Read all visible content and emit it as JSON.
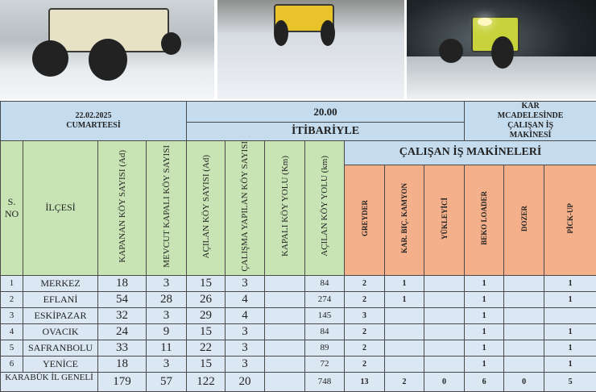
{
  "photos": [
    {
      "name": "grader-snow-photo"
    },
    {
      "name": "grader-road-photo"
    },
    {
      "name": "night-plow-photo"
    }
  ],
  "header": {
    "date": "22.02.2025",
    "day": "CUMARTEESİ",
    "time": "20.00",
    "itibariyle": "İTİBARİYLE",
    "machines_title": "KAR MCADELESİNDE ÇALIŞAN İŞ MAKİNESİ",
    "machines_subtitle": "ÇALIŞAN İŞ MAKİNELERİ"
  },
  "columns": [
    "S. NO",
    "İLÇESİ",
    "KAPANAN KÖY SAYISI (Ad)",
    "MEVCUT KAPALI KÖY SAYISI",
    "AÇILAN KÖY SAYISI (Ad)",
    "ÇALIŞMA YAPILAN KÖY SAYISI",
    "KAPALI KÖY YOLU (Km)",
    "AÇILAN KÖY YOLU (km)",
    "GREYDER",
    "KAR. BIÇ. KAMYON",
    "YÜKLEYİCİ",
    "BEKO LOADER",
    "DOZER",
    "PİCK-UP"
  ],
  "rows": [
    [
      "1",
      "MERKEZ",
      "18",
      "3",
      "15",
      "3",
      "",
      "84",
      "2",
      "1",
      "",
      "1",
      "",
      "1"
    ],
    [
      "2",
      "EFLANİ",
      "54",
      "28",
      "26",
      "4",
      "",
      "274",
      "2",
      "1",
      "",
      "1",
      "",
      "1"
    ],
    [
      "3",
      "ESKİPAZAR",
      "32",
      "3",
      "29",
      "4",
      "",
      "145",
      "3",
      "",
      "",
      "1",
      "",
      ""
    ],
    [
      "4",
      "OVACIK",
      "24",
      "9",
      "15",
      "3",
      "",
      "84",
      "2",
      "",
      "",
      "1",
      "",
      "1"
    ],
    [
      "5",
      "SAFRANBOLU",
      "33",
      "11",
      "22",
      "3",
      "",
      "89",
      "2",
      "",
      "",
      "1",
      "",
      "1"
    ],
    [
      "6",
      "YENİCE",
      "18",
      "3",
      "15",
      "3",
      "",
      "72",
      "2",
      "",
      "",
      "1",
      "",
      "1"
    ]
  ],
  "total": {
    "label": "KARABÜK İL GENELİ",
    "values": [
      "179",
      "57",
      "122",
      "20",
      "",
      "748",
      "13",
      "2",
      "0",
      "6",
      "0",
      "5"
    ]
  }
}
